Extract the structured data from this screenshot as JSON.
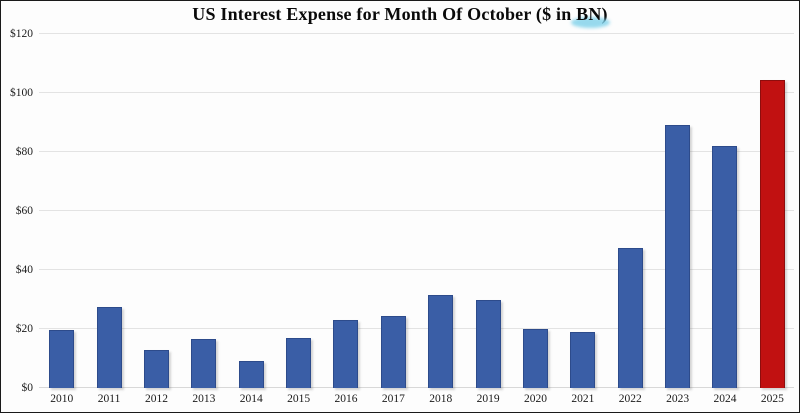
{
  "chart_data": {
    "type": "bar",
    "title": "US Interest Expense for Month Of October ($ in BN)",
    "title_prefix": "US Interest Expense for Month Of October ($ in ",
    "title_highlight": "BN",
    "title_suffix": ")",
    "xlabel": "",
    "ylabel": "",
    "categories": [
      "2010",
      "2011",
      "2012",
      "2013",
      "2014",
      "2015",
      "2016",
      "2017",
      "2018",
      "2019",
      "2020",
      "2021",
      "2022",
      "2023",
      "2024",
      "2025"
    ],
    "values": [
      19.5,
      27.5,
      13,
      16.5,
      9,
      17,
      23,
      24.5,
      31.5,
      30,
      20,
      19,
      47.5,
      89,
      82,
      104.5
    ],
    "unit": "$ BN",
    "ylim": [
      0,
      120
    ],
    "ytick_interval": 20,
    "ytick_labels": [
      "$0",
      "$20",
      "$40",
      "$60",
      "$80",
      "$100",
      "$120"
    ],
    "grid": true,
    "legend": false,
    "highlighted_category": "2025",
    "highlight_index": 15,
    "colors": {
      "bar_fill": "#3a5ea6",
      "bar_border": "#2d4b8b",
      "highlight_fill": "#c11111",
      "highlight_border": "#8e0d0d",
      "gridline": "#e3e3e3",
      "marker_highlight": "#7ed1ea",
      "text": "#1b1b1b",
      "background": "#fdfdfd"
    }
  }
}
